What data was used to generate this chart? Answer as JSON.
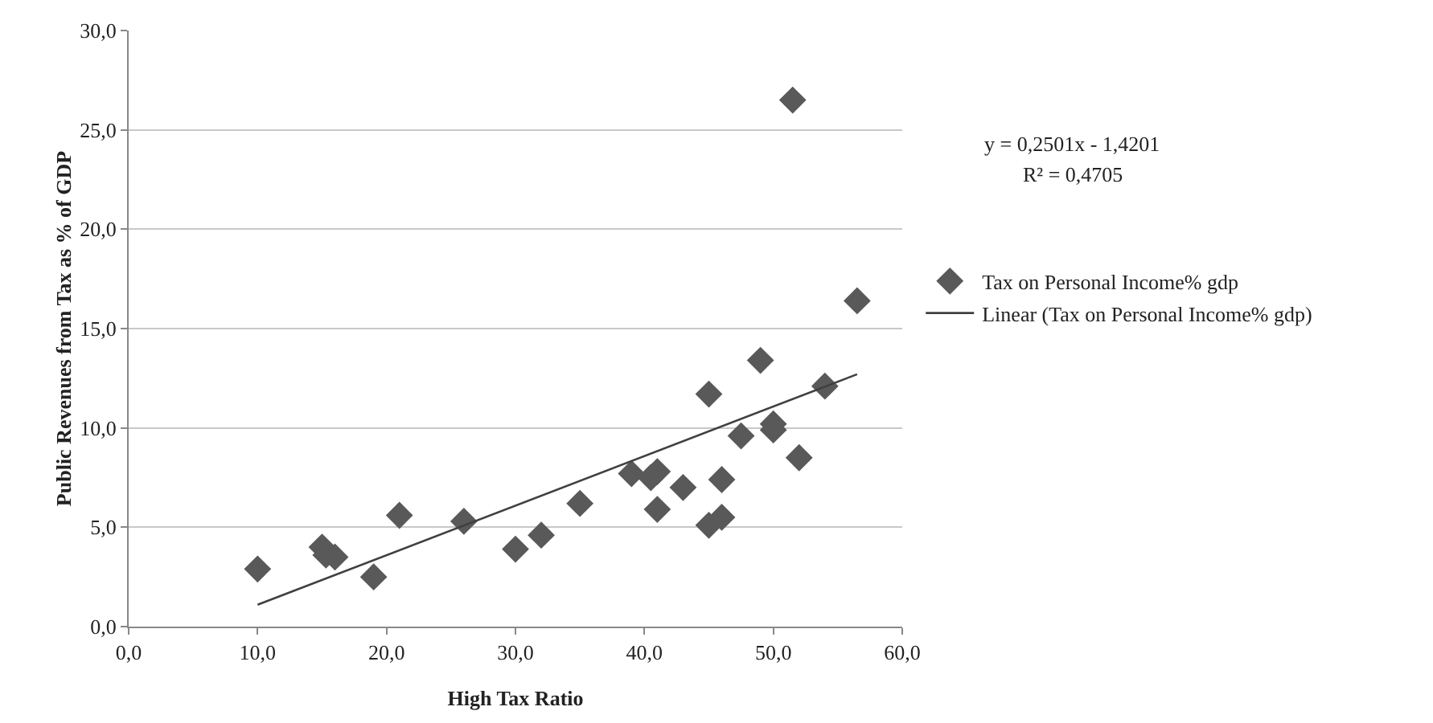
{
  "chart_data": {
    "type": "scatter",
    "xlabel": "High Tax Ratio",
    "ylabel": "Public Revenues from Tax as % of GDP",
    "xlim": [
      0,
      60
    ],
    "ylim": [
      0,
      30
    ],
    "xticks": [
      {
        "value": 0,
        "label": "0,0"
      },
      {
        "value": 10,
        "label": "10,0"
      },
      {
        "value": 20,
        "label": "20,0"
      },
      {
        "value": 30,
        "label": "30,0"
      },
      {
        "value": 40,
        "label": "40,0"
      },
      {
        "value": 50,
        "label": "50,0"
      },
      {
        "value": 60,
        "label": "60,0"
      }
    ],
    "yticks": [
      {
        "value": 0,
        "label": "0,0"
      },
      {
        "value": 5,
        "label": "5,0"
      },
      {
        "value": 10,
        "label": "10,0"
      },
      {
        "value": 15,
        "label": "15,0"
      },
      {
        "value": 20,
        "label": "20,0"
      },
      {
        "value": 25,
        "label": "25,0"
      },
      {
        "value": 30,
        "label": "30,0"
      }
    ],
    "grid": "y",
    "legend": "right",
    "annotations": [
      "y = 0,2501x - 1,4201",
      "R² = 0,4705"
    ],
    "series": [
      {
        "name": "Tax on Personal Income% gdp",
        "type": "scatter",
        "marker": "diamond",
        "color": "#595959",
        "x": [
          10,
          15,
          15.3,
          16,
          19,
          21,
          26,
          30,
          32,
          35,
          39,
          40.5,
          41,
          41,
          43,
          45,
          45,
          46,
          46,
          47.5,
          49,
          50,
          50,
          52,
          51.5,
          54,
          56.5
        ],
        "values": [
          2.9,
          4.0,
          3.6,
          3.5,
          2.5,
          5.6,
          5.3,
          3.9,
          4.6,
          6.2,
          7.7,
          7.5,
          7.8,
          5.9,
          7.0,
          11.7,
          5.1,
          5.5,
          7.4,
          9.6,
          13.4,
          10.2,
          9.9,
          8.5,
          26.5,
          12.1,
          16.4
        ]
      },
      {
        "name": "Linear (Tax on Personal Income% gdp)",
        "type": "line",
        "marker": "none",
        "color": "#404040",
        "x": [
          10,
          56.5
        ],
        "values": [
          1.1,
          12.7
        ]
      }
    ]
  }
}
